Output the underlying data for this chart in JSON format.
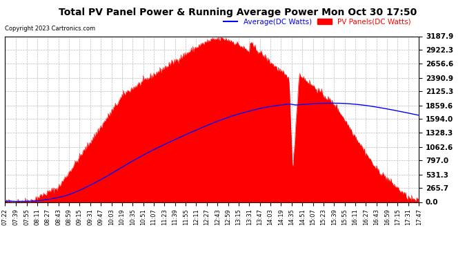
{
  "title": "Total PV Panel Power & Running Average Power Mon Oct 30 17:50",
  "copyright": "Copyright 2023 Cartronics.com",
  "legend_average": "Average(DC Watts)",
  "legend_pv": "PV Panels(DC Watts)",
  "y_max": 3187.9,
  "y_ticks": [
    0.0,
    265.7,
    531.3,
    797.0,
    1062.6,
    1328.3,
    1594.0,
    1859.6,
    2125.3,
    2390.9,
    2656.6,
    2922.3,
    3187.9
  ],
  "bg_color": "#ffffff",
  "plot_bg_color": "#ffffff",
  "grid_color": "#bbbbbb",
  "fill_color": "#ff0000",
  "avg_line_color": "#0000ff",
  "x_labels": [
    "07:22",
    "07:39",
    "07:55",
    "08:11",
    "08:27",
    "08:43",
    "08:59",
    "09:15",
    "09:31",
    "09:47",
    "10:03",
    "10:19",
    "10:35",
    "10:51",
    "11:07",
    "11:23",
    "11:39",
    "11:55",
    "12:11",
    "12:27",
    "12:43",
    "12:59",
    "13:15",
    "13:31",
    "13:47",
    "14:03",
    "14:19",
    "14:35",
    "14:51",
    "15:07",
    "15:23",
    "15:39",
    "15:55",
    "16:11",
    "16:27",
    "16:43",
    "16:59",
    "17:15",
    "17:31",
    "17:47"
  ]
}
